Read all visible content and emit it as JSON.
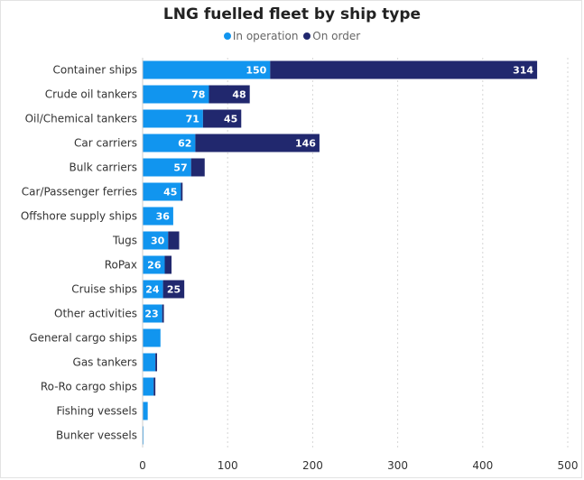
{
  "chart_data": {
    "type": "bar",
    "orientation": "horizontal",
    "stacked": true,
    "title": "LNG fuelled fleet by ship type",
    "categories": [
      "Container ships",
      "Crude oil tankers",
      "Oil/Chemical tankers",
      "Car carriers",
      "Bulk carriers",
      "Car/Passenger ferries",
      "Offshore supply ships",
      "Tugs",
      "RoPax",
      "Cruise ships",
      "Other activities",
      "General cargo ships",
      "Gas tankers",
      "Ro-Ro cargo ships",
      "Fishing vessels",
      "Bunker vessels"
    ],
    "series": [
      {
        "name": "In operation",
        "color": "#1195ef",
        "values": [
          150,
          78,
          71,
          62,
          57,
          45,
          36,
          30,
          26,
          24,
          23,
          21,
          15,
          13,
          6,
          1
        ],
        "labels": [
          "150",
          "78",
          "71",
          "62",
          "57",
          "45",
          "36",
          "30",
          "26",
          "24",
          "23",
          "",
          "",
          "",
          "",
          ""
        ]
      },
      {
        "name": "On order",
        "color": "#21286e",
        "values": [
          314,
          48,
          45,
          146,
          16,
          2,
          0,
          13,
          8,
          25,
          2,
          0,
          2,
          2,
          0,
          0
        ],
        "labels": [
          "314",
          "48",
          "45",
          "146",
          "",
          "",
          "",
          "",
          "",
          "25",
          "",
          "",
          "",
          "",
          "",
          ""
        ]
      }
    ],
    "xlim": [
      0,
      500
    ],
    "xticks": [
      0,
      100,
      200,
      300,
      400,
      500
    ],
    "grid": "vertical",
    "legend": "top-center"
  }
}
